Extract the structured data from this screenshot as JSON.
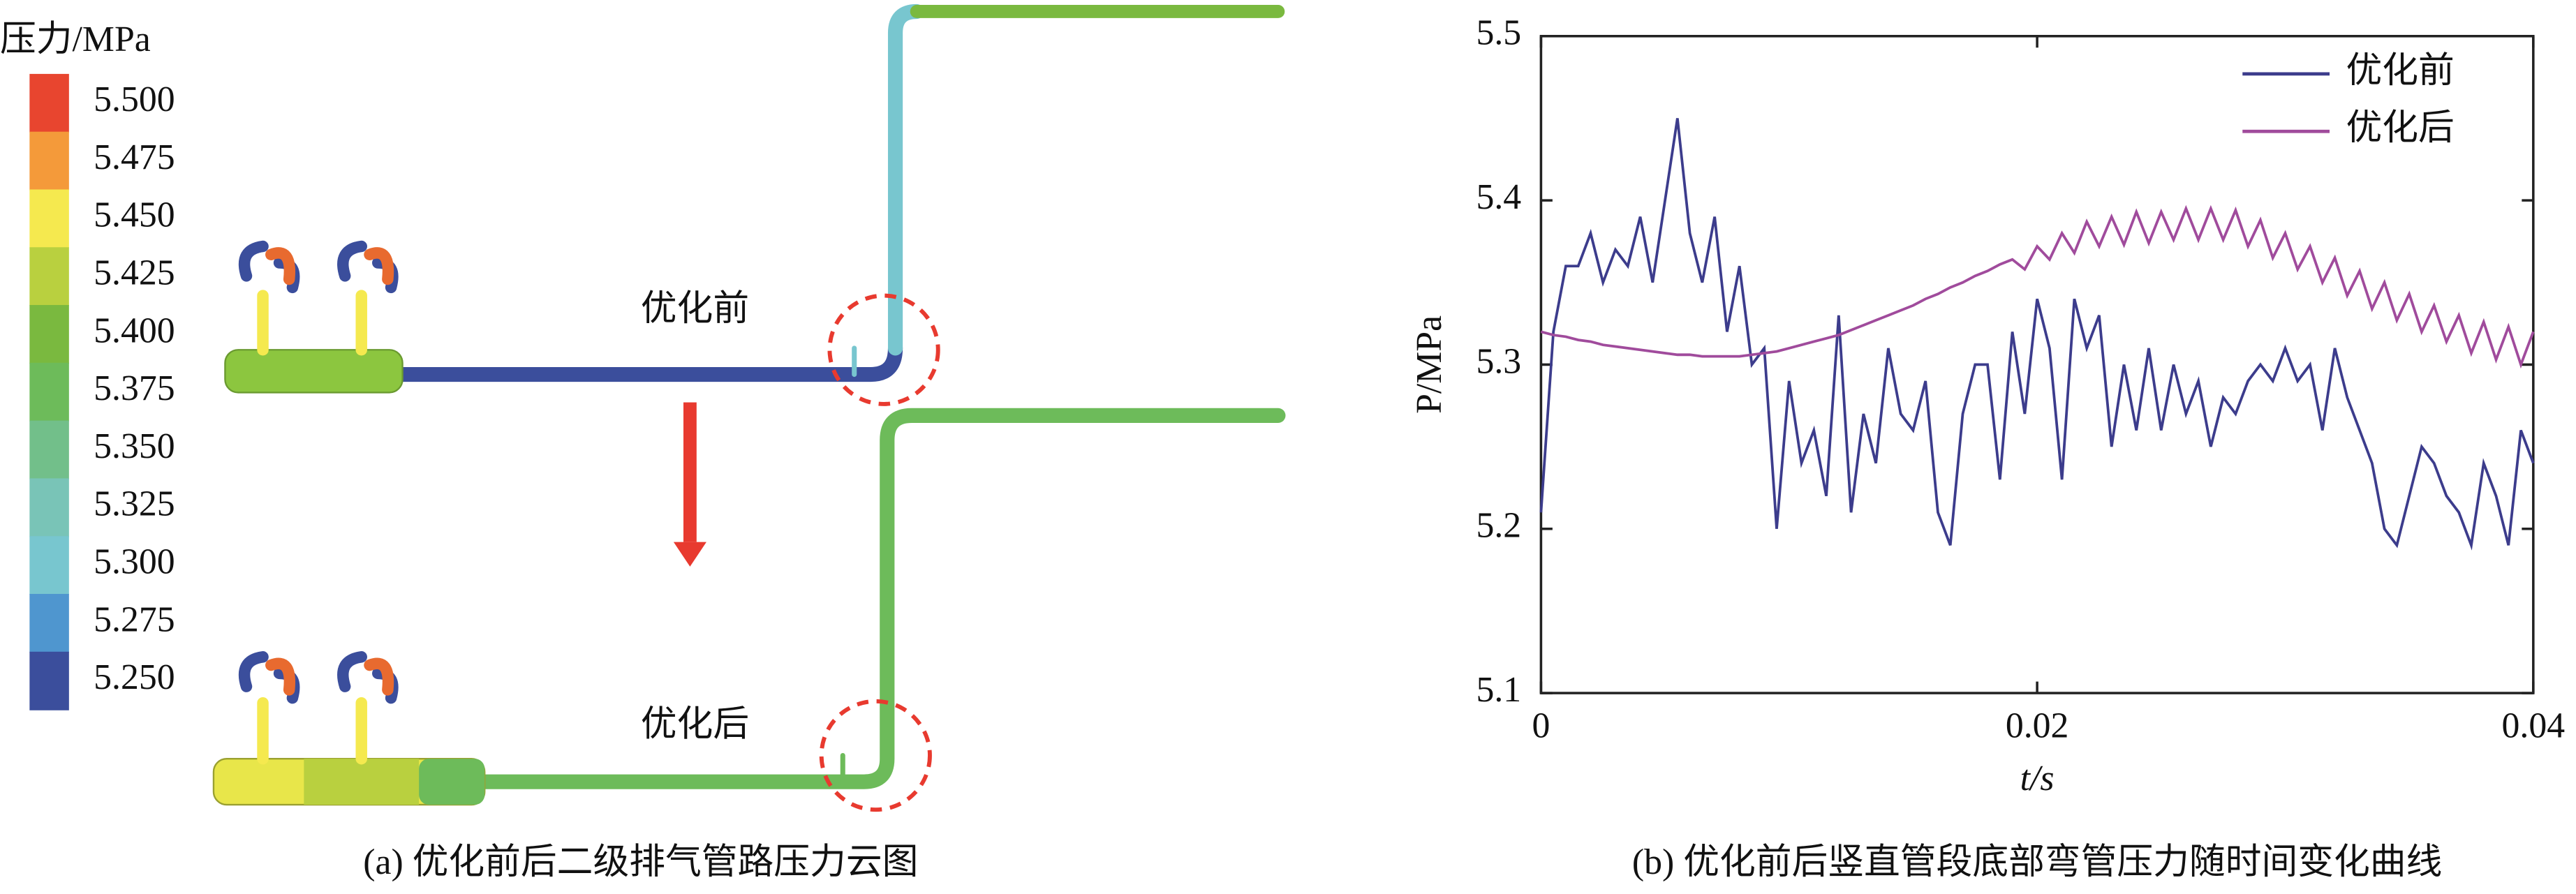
{
  "panel_a": {
    "colorbar": {
      "title": "压力/MPa",
      "ticks": [
        {
          "value": 5.5,
          "label": "5.500"
        },
        {
          "value": 5.475,
          "label": "5.475"
        },
        {
          "value": 5.45,
          "label": "5.450"
        },
        {
          "value": 5.425,
          "label": "5.425"
        },
        {
          "value": 5.4,
          "label": "5.400"
        },
        {
          "value": 5.375,
          "label": "5.375"
        },
        {
          "value": 5.35,
          "label": "5.350"
        },
        {
          "value": 5.325,
          "label": "5.325"
        },
        {
          "value": 5.3,
          "label": "5.300"
        },
        {
          "value": 5.275,
          "label": "5.275"
        },
        {
          "value": 5.25,
          "label": "5.250"
        }
      ],
      "colors": [
        "#e8452f",
        "#f49a3a",
        "#f5e94f",
        "#b9d03f",
        "#7ab93f",
        "#6dbb5a",
        "#72bf8a",
        "#79c4b7",
        "#78c6cf",
        "#4f96cf",
        "#3b4e9c"
      ]
    },
    "labels": {
      "before": "优化前",
      "after": "优化后"
    },
    "caption": "(a) 优化前后二级排气管路压力云图"
  },
  "chart_data": {
    "type": "line",
    "caption": "(b) 优化前后竖直管段底部弯管压力随时间变化曲线",
    "xlabel": "t/s",
    "ylabel": "P/MPa",
    "xlim": [
      0,
      0.04
    ],
    "xticks": [
      0,
      0.02,
      0.04
    ],
    "ylim": [
      5.1,
      5.5
    ],
    "yticks": [
      5.1,
      5.2,
      5.3,
      5.4,
      5.5
    ],
    "legend": "upper right",
    "x": [
      0,
      0.0005,
      0.001,
      0.0015,
      0.002,
      0.0025,
      0.003,
      0.0035,
      0.004,
      0.0045,
      0.005,
      0.0055,
      0.006,
      0.0065,
      0.007,
      0.0075,
      0.008,
      0.0085,
      0.009,
      0.0095,
      0.01,
      0.0105,
      0.011,
      0.0115,
      0.012,
      0.0125,
      0.013,
      0.0135,
      0.014,
      0.0145,
      0.015,
      0.0155,
      0.016,
      0.0165,
      0.017,
      0.0175,
      0.018,
      0.0185,
      0.019,
      0.0195,
      0.02,
      0.0205,
      0.021,
      0.0215,
      0.022,
      0.0225,
      0.023,
      0.0235,
      0.024,
      0.0245,
      0.025,
      0.0255,
      0.026,
      0.0265,
      0.027,
      0.0275,
      0.028,
      0.0285,
      0.029,
      0.0295,
      0.03,
      0.0305,
      0.031,
      0.0315,
      0.032,
      0.0325,
      0.033,
      0.0335,
      0.034,
      0.0345,
      0.035,
      0.0355,
      0.036,
      0.0365,
      0.037,
      0.0375,
      0.038,
      0.0385,
      0.039,
      0.0395,
      0.04
    ],
    "series": [
      {
        "name": "优化前",
        "color": "#3c3c8c",
        "values": [
          5.21,
          5.32,
          5.36,
          5.36,
          5.38,
          5.35,
          5.37,
          5.36,
          5.39,
          5.35,
          5.4,
          5.45,
          5.38,
          5.35,
          5.39,
          5.32,
          5.36,
          5.3,
          5.31,
          5.2,
          5.29,
          5.24,
          5.26,
          5.22,
          5.33,
          5.21,
          5.27,
          5.24,
          5.31,
          5.27,
          5.26,
          5.29,
          5.21,
          5.19,
          5.27,
          5.3,
          5.3,
          5.23,
          5.32,
          5.27,
          5.34,
          5.31,
          5.23,
          5.34,
          5.31,
          5.33,
          5.25,
          5.3,
          5.26,
          5.31,
          5.26,
          5.3,
          5.27,
          5.29,
          5.25,
          5.28,
          5.27,
          5.29,
          5.3,
          5.29,
          5.31,
          5.29,
          5.3,
          5.26,
          5.31,
          5.28,
          5.26,
          5.24,
          5.2,
          5.19,
          5.22,
          5.25,
          5.24,
          5.22,
          5.21,
          5.19,
          5.24,
          5.22,
          5.19,
          5.26,
          5.24
        ]
      },
      {
        "name": "优化后",
        "color": "#a04b9c",
        "values": [
          5.32,
          5.318,
          5.317,
          5.315,
          5.314,
          5.312,
          5.311,
          5.31,
          5.309,
          5.308,
          5.307,
          5.306,
          5.306,
          5.305,
          5.305,
          5.305,
          5.305,
          5.306,
          5.307,
          5.308,
          5.31,
          5.312,
          5.314,
          5.316,
          5.318,
          5.321,
          5.324,
          5.327,
          5.33,
          5.333,
          5.336,
          5.34,
          5.343,
          5.347,
          5.35,
          5.354,
          5.357,
          5.361,
          5.364,
          5.358,
          5.372,
          5.364,
          5.38,
          5.368,
          5.387,
          5.372,
          5.39,
          5.373,
          5.393,
          5.374,
          5.393,
          5.376,
          5.395,
          5.376,
          5.395,
          5.376,
          5.394,
          5.372,
          5.388,
          5.365,
          5.38,
          5.358,
          5.372,
          5.35,
          5.365,
          5.342,
          5.357,
          5.334,
          5.35,
          5.327,
          5.343,
          5.32,
          5.336,
          5.314,
          5.33,
          5.307,
          5.326,
          5.303,
          5.323,
          5.3,
          5.32
        ]
      }
    ]
  }
}
